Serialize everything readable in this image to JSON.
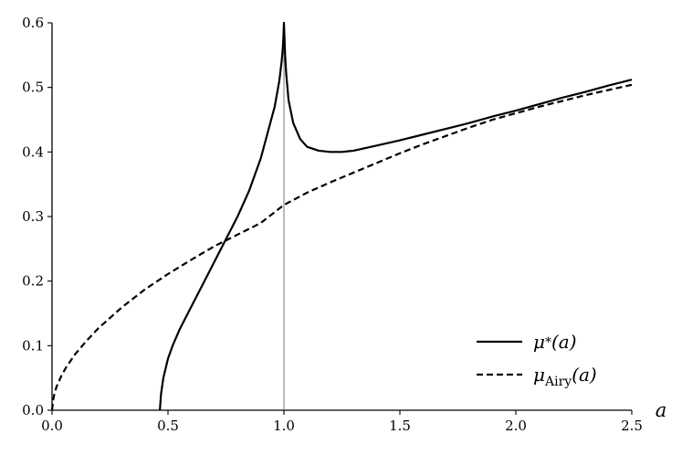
{
  "chart_data": {
    "type": "line",
    "title": "",
    "xlabel": "a",
    "ylabel": "",
    "xlim": [
      0.0,
      2.5
    ],
    "ylim": [
      0.0,
      0.6
    ],
    "x_ticks": [
      0.0,
      0.5,
      1.0,
      1.5,
      2.0,
      2.5
    ],
    "x_tick_labels": [
      "0.0",
      "0.5",
      "1.0",
      "1.5",
      "2.0",
      "2.5"
    ],
    "y_ticks": [
      0.0,
      0.1,
      0.2,
      0.3,
      0.4,
      0.5,
      0.6
    ],
    "y_tick_labels": [
      "0.0",
      "0.1",
      "0.2",
      "0.3",
      "0.4",
      "0.5",
      "0.6"
    ],
    "grid": false,
    "legend_position": "bottom-right",
    "vertical_line_x": 1.0,
    "series": [
      {
        "name": "μ*(a)",
        "legend": {
          "base": "μ",
          "sub": "*",
          "arg": "(a)"
        },
        "style": "solid",
        "color": "#000000",
        "x": [
          0.465,
          0.47,
          0.48,
          0.5,
          0.52,
          0.55,
          0.6,
          0.65,
          0.7,
          0.75,
          0.8,
          0.85,
          0.9,
          0.93,
          0.96,
          0.98,
          0.99,
          0.995,
          0.998,
          1.0,
          1.002,
          1.005,
          1.01,
          1.02,
          1.04,
          1.07,
          1.1,
          1.15,
          1.2,
          1.25,
          1.3,
          1.4,
          1.5,
          1.6,
          1.7,
          1.8,
          1.9,
          2.0,
          2.1,
          2.2,
          2.3,
          2.4,
          2.5
        ],
        "y": [
          0.0,
          0.025,
          0.05,
          0.08,
          0.1,
          0.125,
          0.16,
          0.195,
          0.23,
          0.265,
          0.3,
          0.34,
          0.39,
          0.43,
          0.47,
          0.51,
          0.54,
          0.56,
          0.58,
          0.6,
          0.58,
          0.55,
          0.52,
          0.48,
          0.445,
          0.42,
          0.408,
          0.402,
          0.4,
          0.4,
          0.402,
          0.41,
          0.418,
          0.427,
          0.436,
          0.445,
          0.455,
          0.464,
          0.474,
          0.484,
          0.493,
          0.503,
          0.512
        ]
      },
      {
        "name": "μAiry(a)",
        "legend": {
          "base": "μ",
          "sub": "Airy",
          "arg": "(a)"
        },
        "style": "dashed",
        "color": "#000000",
        "x": [
          0.0,
          0.005,
          0.01,
          0.02,
          0.04,
          0.06,
          0.1,
          0.15,
          0.2,
          0.3,
          0.4,
          0.5,
          0.6,
          0.7,
          0.8,
          0.9,
          1.0,
          1.1,
          1.2,
          1.3,
          1.4,
          1.5,
          1.6,
          1.7,
          1.8,
          1.9,
          2.0,
          2.1,
          2.2,
          2.3,
          2.4,
          2.5
        ],
        "y": [
          0.0,
          0.016,
          0.025,
          0.037,
          0.053,
          0.066,
          0.087,
          0.108,
          0.127,
          0.159,
          0.187,
          0.211,
          0.233,
          0.254,
          0.272,
          0.29,
          0.318,
          0.337,
          0.353,
          0.368,
          0.383,
          0.398,
          0.412,
          0.425,
          0.438,
          0.45,
          0.46,
          0.47,
          0.479,
          0.488,
          0.496,
          0.504
        ]
      }
    ]
  }
}
